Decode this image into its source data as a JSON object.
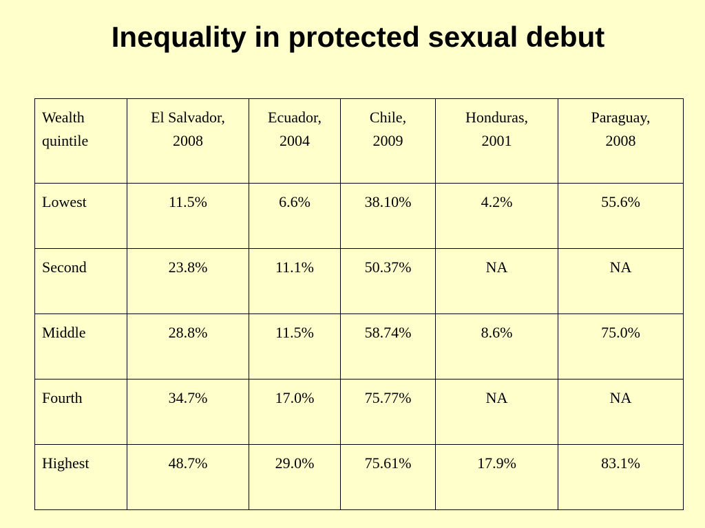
{
  "title": "Inequality in protected sexual debut",
  "table": {
    "headers": [
      [
        "Wealth",
        "quintile"
      ],
      [
        "El Salvador,",
        "2008"
      ],
      [
        "Ecuador,",
        "2004"
      ],
      [
        "Chile,",
        "2009"
      ],
      [
        "Honduras,",
        "2001"
      ],
      [
        "Paraguay,",
        "2008"
      ]
    ],
    "rows": [
      [
        "Lowest",
        "11.5%",
        "6.6%",
        "38.10%",
        "4.2%",
        "55.6%"
      ],
      [
        "Second",
        "23.8%",
        "11.1%",
        "50.37%",
        "NA",
        "NA"
      ],
      [
        "Middle",
        "28.8%",
        "11.5%",
        "58.74%",
        "8.6%",
        "75.0%"
      ],
      [
        "Fourth",
        "34.7%",
        "17.0%",
        "75.77%",
        "NA",
        "NA"
      ],
      [
        "Highest",
        "48.7%",
        "29.0%",
        "75.61%",
        "17.9%",
        "83.1%"
      ]
    ]
  },
  "colors": {
    "background": "#ffffcc",
    "text": "#000000",
    "border": "#000000"
  }
}
